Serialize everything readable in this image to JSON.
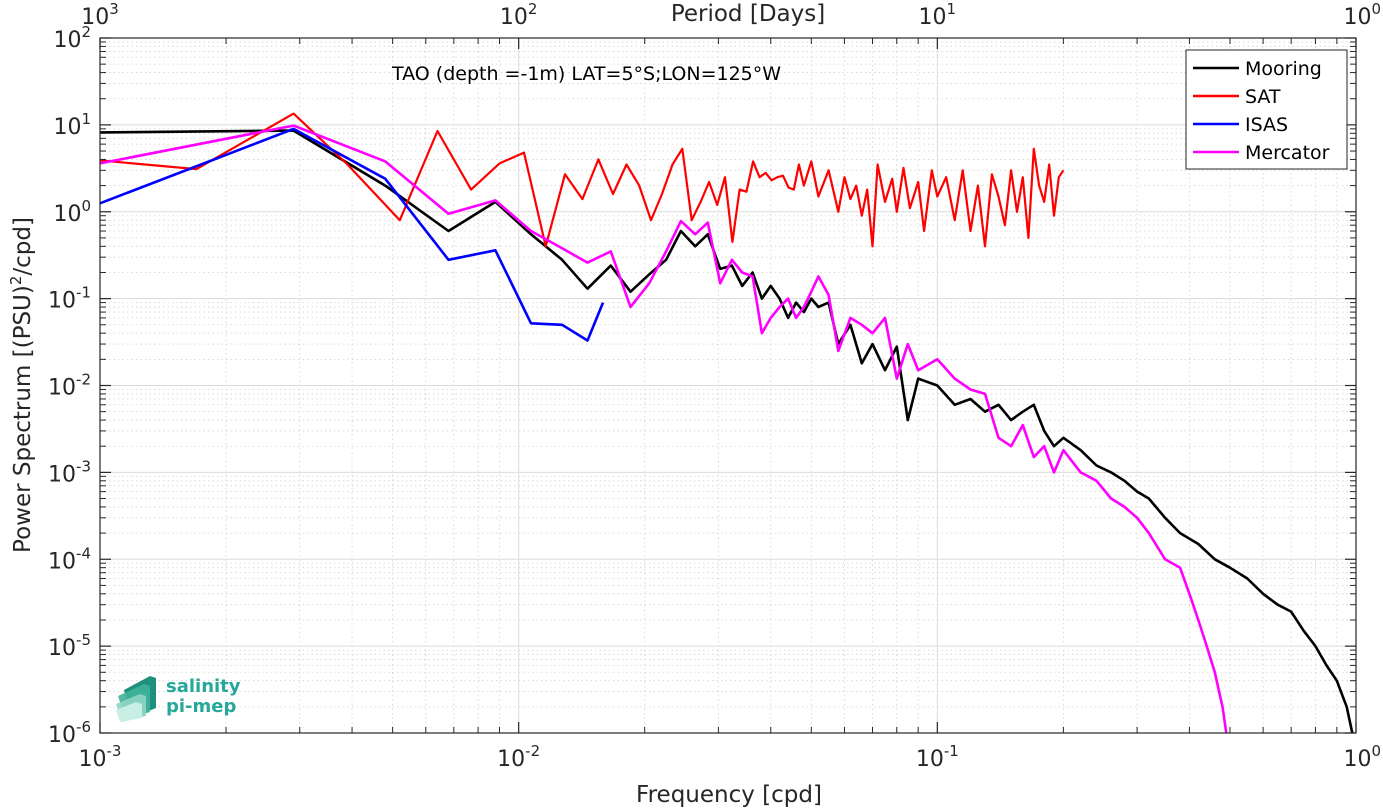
{
  "chart_data": {
    "type": "line",
    "annotation": "TAO (depth =-1m) LAT=5°S;LON=125°W",
    "xlabel": "Frequency [cpd]",
    "ylabel_main": "Power Spectrum [(PSU)",
    "ylabel_sup": "2",
    "ylabel_tail": "/cpd]",
    "top_axis_label": "Period [Days]",
    "x_scale": "log",
    "y_scale": "log",
    "xlim": [
      0.001,
      1
    ],
    "ylim": [
      1e-06,
      100
    ],
    "grid": true,
    "legend_position": "top-right",
    "x_ticks": [
      {
        "value": 0.001,
        "base": "10",
        "exp": "-3"
      },
      {
        "value": 0.01,
        "base": "10",
        "exp": "-2"
      },
      {
        "value": 0.1,
        "base": "10",
        "exp": "-1"
      },
      {
        "value": 1,
        "base": "10",
        "exp": "0"
      }
    ],
    "top_ticks": [
      {
        "value": 0.001,
        "base": "10",
        "exp": "3"
      },
      {
        "value": 0.01,
        "base": "10",
        "exp": "2"
      },
      {
        "value": 0.1,
        "base": "10",
        "exp": "1"
      },
      {
        "value": 1,
        "base": "10",
        "exp": "0"
      }
    ],
    "y_ticks": [
      {
        "value": 100,
        "base": "10",
        "exp": "2"
      },
      {
        "value": 10,
        "base": "10",
        "exp": "1"
      },
      {
        "value": 1,
        "base": "10",
        "exp": "0"
      },
      {
        "value": 0.1,
        "base": "10",
        "exp": "-1"
      },
      {
        "value": 0.01,
        "base": "10",
        "exp": "-2"
      },
      {
        "value": 0.001,
        "base": "10",
        "exp": "-3"
      },
      {
        "value": 0.0001,
        "base": "10",
        "exp": "-4"
      },
      {
        "value": 1e-05,
        "base": "10",
        "exp": "-5"
      },
      {
        "value": 1e-06,
        "base": "10",
        "exp": "-6"
      }
    ],
    "series": [
      {
        "name": "Mooring",
        "color": "#000000",
        "points": [
          [
            0.001,
            8.2
          ],
          [
            0.0029,
            8.6
          ],
          [
            0.0048,
            2.0
          ],
          [
            0.0068,
            0.6
          ],
          [
            0.0088,
            1.3
          ],
          [
            0.0107,
            0.55
          ],
          [
            0.0127,
            0.28
          ],
          [
            0.0146,
            0.13
          ],
          [
            0.0166,
            0.24
          ],
          [
            0.0185,
            0.12
          ],
          [
            0.0205,
            0.19
          ],
          [
            0.0225,
            0.28
          ],
          [
            0.0244,
            0.6
          ],
          [
            0.0264,
            0.4
          ],
          [
            0.0283,
            0.55
          ],
          [
            0.0303,
            0.22
          ],
          [
            0.0323,
            0.24
          ],
          [
            0.0342,
            0.14
          ],
          [
            0.0362,
            0.2
          ],
          [
            0.0381,
            0.1
          ],
          [
            0.04,
            0.14
          ],
          [
            0.042,
            0.1
          ],
          [
            0.044,
            0.06
          ],
          [
            0.046,
            0.09
          ],
          [
            0.048,
            0.07
          ],
          [
            0.05,
            0.1
          ],
          [
            0.052,
            0.08
          ],
          [
            0.055,
            0.09
          ],
          [
            0.058,
            0.03
          ],
          [
            0.062,
            0.05
          ],
          [
            0.066,
            0.018
          ],
          [
            0.07,
            0.03
          ],
          [
            0.075,
            0.015
          ],
          [
            0.08,
            0.028
          ],
          [
            0.085,
            0.004
          ],
          [
            0.09,
            0.012
          ],
          [
            0.1,
            0.01
          ],
          [
            0.11,
            0.006
          ],
          [
            0.12,
            0.007
          ],
          [
            0.13,
            0.005
          ],
          [
            0.14,
            0.006
          ],
          [
            0.15,
            0.004
          ],
          [
            0.16,
            0.005
          ],
          [
            0.17,
            0.006
          ],
          [
            0.18,
            0.003
          ],
          [
            0.19,
            0.002
          ],
          [
            0.2,
            0.0025
          ],
          [
            0.22,
            0.0018
          ],
          [
            0.24,
            0.0012
          ],
          [
            0.26,
            0.001
          ],
          [
            0.28,
            0.0008
          ],
          [
            0.3,
            0.0006
          ],
          [
            0.32,
            0.0005
          ],
          [
            0.35,
            0.0003
          ],
          [
            0.38,
            0.0002
          ],
          [
            0.42,
            0.00015
          ],
          [
            0.46,
            0.0001
          ],
          [
            0.5,
            8e-05
          ],
          [
            0.55,
            6e-05
          ],
          [
            0.6,
            4e-05
          ],
          [
            0.65,
            3e-05
          ],
          [
            0.7,
            2.5e-05
          ],
          [
            0.75,
            1.5e-05
          ],
          [
            0.8,
            1e-05
          ],
          [
            0.85,
            6e-06
          ],
          [
            0.9,
            4e-06
          ],
          [
            0.95,
            2e-06
          ],
          [
            0.98,
            1e-06
          ]
        ]
      },
      {
        "name": "SAT",
        "color": "#ff0000",
        "points": [
          [
            0.001,
            3.9
          ],
          [
            0.0017,
            3.1
          ],
          [
            0.0029,
            13.5
          ],
          [
            0.0039,
            3.5
          ],
          [
            0.0052,
            0.8
          ],
          [
            0.0064,
            8.5
          ],
          [
            0.0077,
            1.8
          ],
          [
            0.009,
            3.6
          ],
          [
            0.0103,
            4.8
          ],
          [
            0.0116,
            0.4
          ],
          [
            0.0129,
            2.7
          ],
          [
            0.0142,
            1.4
          ],
          [
            0.0155,
            4.0
          ],
          [
            0.0168,
            1.6
          ],
          [
            0.0181,
            3.5
          ],
          [
            0.0194,
            2.0
          ],
          [
            0.0207,
            0.8
          ],
          [
            0.022,
            1.6
          ],
          [
            0.0233,
            3.5
          ],
          [
            0.0246,
            5.3
          ],
          [
            0.0259,
            0.8
          ],
          [
            0.0272,
            1.3
          ],
          [
            0.0285,
            2.2
          ],
          [
            0.0298,
            1.2
          ],
          [
            0.0311,
            2.5
          ],
          [
            0.0324,
            0.45
          ],
          [
            0.0337,
            1.8
          ],
          [
            0.035,
            1.7
          ],
          [
            0.0363,
            3.8
          ],
          [
            0.0376,
            2.5
          ],
          [
            0.0389,
            2.8
          ],
          [
            0.0402,
            2.3
          ],
          [
            0.0415,
            2.5
          ],
          [
            0.0428,
            2.6
          ],
          [
            0.0441,
            1.9
          ],
          [
            0.0454,
            1.8
          ],
          [
            0.0467,
            3.5
          ],
          [
            0.048,
            2.0
          ],
          [
            0.05,
            3.8
          ],
          [
            0.052,
            1.5
          ],
          [
            0.055,
            3.0
          ],
          [
            0.058,
            1.0
          ],
          [
            0.06,
            2.5
          ],
          [
            0.062,
            1.4
          ],
          [
            0.064,
            2.0
          ],
          [
            0.066,
            0.9
          ],
          [
            0.068,
            1.8
          ],
          [
            0.07,
            0.4
          ],
          [
            0.072,
            3.5
          ],
          [
            0.075,
            1.3
          ],
          [
            0.078,
            2.4
          ],
          [
            0.08,
            1.0
          ],
          [
            0.083,
            3.2
          ],
          [
            0.086,
            1.1
          ],
          [
            0.09,
            2.2
          ],
          [
            0.093,
            0.6
          ],
          [
            0.097,
            3.0
          ],
          [
            0.1,
            1.5
          ],
          [
            0.105,
            2.5
          ],
          [
            0.11,
            0.8
          ],
          [
            0.115,
            3.0
          ],
          [
            0.12,
            0.6
          ],
          [
            0.125,
            2.0
          ],
          [
            0.13,
            0.4
          ],
          [
            0.135,
            2.7
          ],
          [
            0.14,
            1.5
          ],
          [
            0.145,
            0.7
          ],
          [
            0.15,
            3.0
          ],
          [
            0.155,
            1.0
          ],
          [
            0.16,
            2.5
          ],
          [
            0.165,
            0.5
          ],
          [
            0.17,
            5.3
          ],
          [
            0.175,
            2.0
          ],
          [
            0.18,
            1.3
          ],
          [
            0.185,
            3.5
          ],
          [
            0.19,
            0.9
          ],
          [
            0.195,
            2.5
          ],
          [
            0.2,
            3.0
          ]
        ]
      },
      {
        "name": "ISAS",
        "color": "#0000ff",
        "points": [
          [
            0.001,
            1.25
          ],
          [
            0.0029,
            9.0
          ],
          [
            0.0048,
            2.4
          ],
          [
            0.0068,
            0.28
          ],
          [
            0.0088,
            0.36
          ],
          [
            0.0107,
            0.052
          ],
          [
            0.0127,
            0.05
          ],
          [
            0.0146,
            0.033
          ],
          [
            0.0159,
            0.09
          ]
        ]
      },
      {
        "name": "Mercator",
        "color": "#ff00ff",
        "points": [
          [
            0.001,
            3.6
          ],
          [
            0.0029,
            9.8
          ],
          [
            0.0048,
            3.8
          ],
          [
            0.0068,
            0.95
          ],
          [
            0.0088,
            1.35
          ],
          [
            0.0107,
            0.6
          ],
          [
            0.0127,
            0.38
          ],
          [
            0.0146,
            0.26
          ],
          [
            0.0166,
            0.35
          ],
          [
            0.0185,
            0.08
          ],
          [
            0.0205,
            0.15
          ],
          [
            0.0225,
            0.35
          ],
          [
            0.0244,
            0.78
          ],
          [
            0.0264,
            0.55
          ],
          [
            0.0283,
            0.75
          ],
          [
            0.0303,
            0.15
          ],
          [
            0.0323,
            0.28
          ],
          [
            0.0342,
            0.2
          ],
          [
            0.0362,
            0.18
          ],
          [
            0.0381,
            0.04
          ],
          [
            0.04,
            0.06
          ],
          [
            0.042,
            0.08
          ],
          [
            0.044,
            0.1
          ],
          [
            0.046,
            0.06
          ],
          [
            0.048,
            0.08
          ],
          [
            0.05,
            0.12
          ],
          [
            0.052,
            0.18
          ],
          [
            0.055,
            0.11
          ],
          [
            0.058,
            0.025
          ],
          [
            0.062,
            0.06
          ],
          [
            0.066,
            0.05
          ],
          [
            0.07,
            0.04
          ],
          [
            0.075,
            0.06
          ],
          [
            0.08,
            0.012
          ],
          [
            0.085,
            0.03
          ],
          [
            0.09,
            0.015
          ],
          [
            0.1,
            0.02
          ],
          [
            0.11,
            0.012
          ],
          [
            0.12,
            0.009
          ],
          [
            0.13,
            0.008
          ],
          [
            0.14,
            0.0025
          ],
          [
            0.15,
            0.002
          ],
          [
            0.16,
            0.0035
          ],
          [
            0.17,
            0.0015
          ],
          [
            0.18,
            0.002
          ],
          [
            0.19,
            0.001
          ],
          [
            0.2,
            0.0018
          ],
          [
            0.22,
            0.001
          ],
          [
            0.24,
            0.0008
          ],
          [
            0.26,
            0.0005
          ],
          [
            0.28,
            0.0004
          ],
          [
            0.3,
            0.0003
          ],
          [
            0.32,
            0.0002
          ],
          [
            0.35,
            0.0001
          ],
          [
            0.38,
            8e-05
          ],
          [
            0.4,
            4e-05
          ],
          [
            0.42,
            2e-05
          ],
          [
            0.44,
            1e-05
          ],
          [
            0.46,
            5e-06
          ],
          [
            0.48,
            2e-06
          ],
          [
            0.49,
            1e-06
          ]
        ]
      }
    ]
  },
  "logo": {
    "line1": "salinity",
    "line2": "pi-mep",
    "color": "#25a89a"
  }
}
